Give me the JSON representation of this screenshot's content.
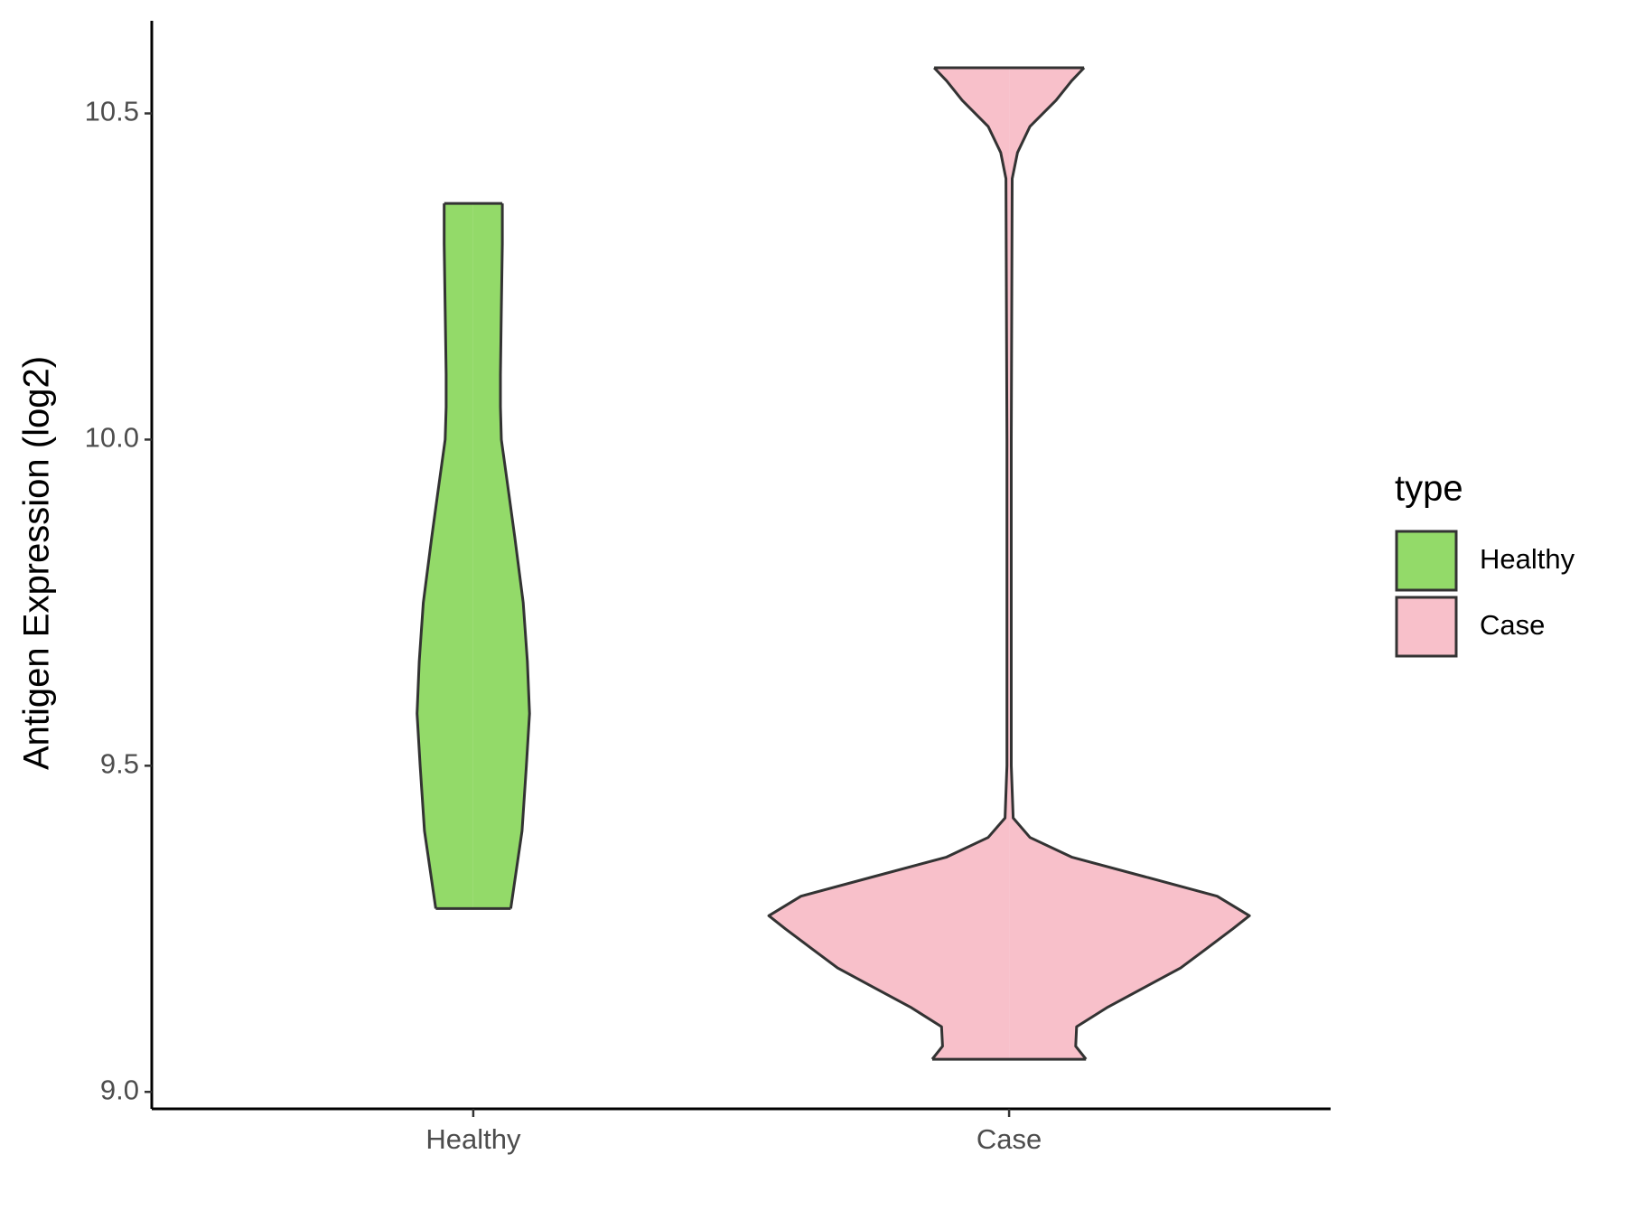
{
  "chart_data": {
    "type": "violin",
    "y_label": "Antigen Expression (log2)",
    "legend_title": "type",
    "categories": [
      "Healthy",
      "Case"
    ],
    "series": [
      {
        "name": "Healthy",
        "color": "#93DA69",
        "y": [
          9.281,
          9.4,
          9.5,
          9.58,
          9.66,
          9.75,
          9.85,
          9.92,
          10.0,
          10.05,
          10.1,
          10.2,
          10.3,
          10.362
        ],
        "density": [
          0.156,
          0.203,
          0.221,
          0.234,
          0.225,
          0.208,
          0.173,
          0.147,
          0.117,
          0.113,
          0.113,
          0.117,
          0.121,
          0.121
        ]
      },
      {
        "name": "Case",
        "color": "#F8C0CA",
        "y": [
          9.05,
          9.07,
          9.1,
          9.13,
          9.16,
          9.19,
          9.22,
          9.25,
          9.27,
          9.3,
          9.33,
          9.36,
          9.39,
          9.42,
          9.5,
          10.0,
          10.4,
          10.44,
          10.48,
          10.52,
          10.55,
          10.57
        ],
        "density": [
          0.32,
          0.277,
          0.281,
          0.411,
          0.563,
          0.714,
          0.823,
          0.931,
          1,
          0.866,
          0.563,
          0.26,
          0.087,
          0.017,
          0.009,
          0.009,
          0.013,
          0.035,
          0.087,
          0.195,
          0.26,
          0.312
        ]
      }
    ],
    "ylim": [
      8.974,
      10.642
    ],
    "yticks": [
      {
        "value": 9,
        "label": "9.0"
      },
      9.5,
      {
        "value": 10,
        "label": "10.0"
      },
      10.5
    ],
    "legend_position": "right"
  }
}
